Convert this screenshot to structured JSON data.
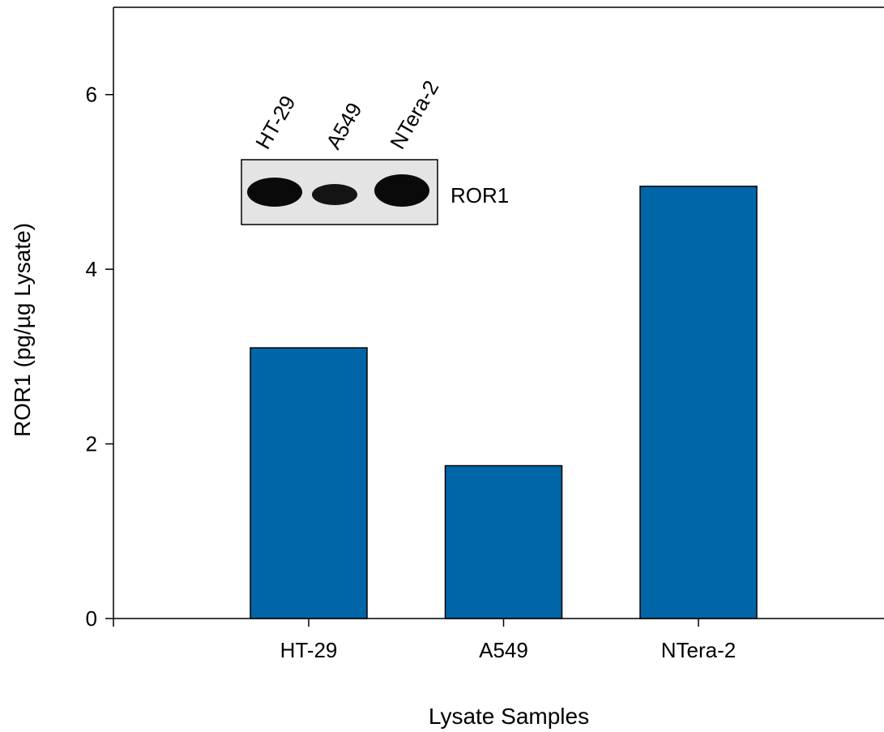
{
  "chart_data": {
    "type": "bar",
    "categories": [
      "HT-29",
      "A549",
      "NTera-2"
    ],
    "values": [
      3.1,
      1.75,
      4.95
    ],
    "xlabel": "Lysate Samples",
    "ylabel": "ROR1 (pg/µg Lysate)",
    "ylim": [
      0,
      7
    ],
    "yticks": [
      0,
      2,
      4,
      6
    ],
    "bar_color": "#0066a8",
    "grid": false,
    "inset": {
      "lane_labels": [
        "HT-29",
        "A549",
        "NTera-2"
      ],
      "band_label": "ROR1"
    }
  }
}
